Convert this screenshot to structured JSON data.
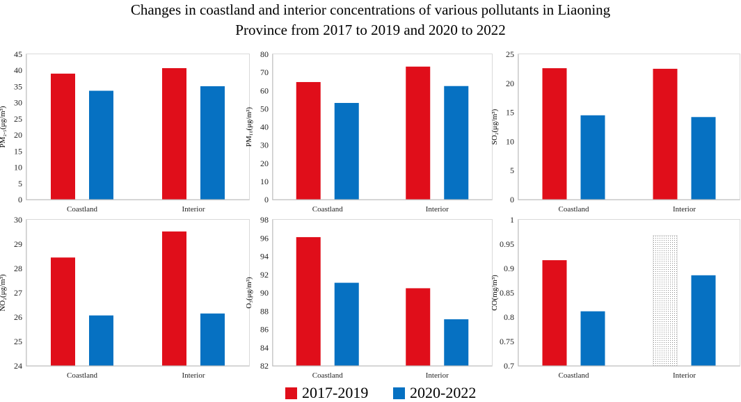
{
  "title_lines": [
    "Changes in coastland and interior concentrations of various pollutants in Liaoning",
    "Province from 2017 to 2019 and 2020 to 2022"
  ],
  "legend": [
    {
      "label": "2017-2019",
      "color": "#e00e1a"
    },
    {
      "label": "2020-2022",
      "color": "#0671c2"
    }
  ],
  "chart_data": [
    {
      "type": "bar",
      "ylabel": "PM₂.₅(μg/m³)",
      "categories": [
        "Coastland",
        "Interior"
      ],
      "series": [
        {
          "name": "2017-2019",
          "values": [
            39.0,
            40.7
          ]
        },
        {
          "name": "2020-2022",
          "values": [
            33.7,
            35.1
          ]
        }
      ],
      "ylim": [
        0,
        45
      ],
      "yticks": [
        0,
        5,
        10,
        15,
        20,
        25,
        30,
        35,
        40,
        45
      ],
      "ytick_labels": [
        "0",
        "5",
        "10",
        "15",
        "20",
        "25",
        "30",
        "35",
        "40",
        "45"
      ]
    },
    {
      "type": "bar",
      "ylabel": "PM₁₀(μg/m³)",
      "categories": [
        "Coastland",
        "Interior"
      ],
      "series": [
        {
          "name": "2017-2019",
          "values": [
            64.7,
            73.2
          ]
        },
        {
          "name": "2020-2022",
          "values": [
            53.2,
            62.5
          ]
        }
      ],
      "ylim": [
        0,
        80
      ],
      "yticks": [
        0,
        10,
        20,
        30,
        40,
        50,
        60,
        70,
        80
      ],
      "ytick_labels": [
        "0",
        "10",
        "20",
        "30",
        "40",
        "50",
        "60",
        "70",
        "80"
      ]
    },
    {
      "type": "bar",
      "ylabel": "SO₂(μg/m³)",
      "categories": [
        "Coastland",
        "Interior"
      ],
      "series": [
        {
          "name": "2017-2019",
          "values": [
            22.6,
            22.5
          ]
        },
        {
          "name": "2020-2022",
          "values": [
            14.5,
            14.2
          ]
        }
      ],
      "ylim": [
        0,
        25
      ],
      "yticks": [
        0,
        5,
        10,
        15,
        20,
        25
      ],
      "ytick_labels": [
        "0",
        "5",
        "10",
        "15",
        "20",
        "25"
      ]
    },
    {
      "type": "bar",
      "ylabel": "NO₂(μg/m³)",
      "categories": [
        "Coastland",
        "Interior"
      ],
      "series": [
        {
          "name": "2017-2019",
          "values": [
            28.45,
            29.52
          ]
        },
        {
          "name": "2020-2022",
          "values": [
            26.07,
            26.15
          ]
        }
      ],
      "ylim": [
        24,
        30
      ],
      "yticks": [
        24,
        25,
        26,
        27,
        28,
        29,
        30
      ],
      "ytick_labels": [
        "24",
        "25",
        "26",
        "27",
        "28",
        "29",
        "30"
      ]
    },
    {
      "type": "bar",
      "ylabel": "O₃(μg/m³)",
      "categories": [
        "Coastland",
        "Interior"
      ],
      "series": [
        {
          "name": "2017-2019",
          "values": [
            96.1,
            90.5
          ]
        },
        {
          "name": "2020-2022",
          "values": [
            91.1,
            87.1
          ]
        }
      ],
      "ylim": [
        82,
        98
      ],
      "yticks": [
        82,
        84,
        86,
        88,
        90,
        92,
        94,
        96,
        98
      ],
      "ytick_labels": [
        "82",
        "84",
        "86",
        "88",
        "90",
        "92",
        "94",
        "96",
        "98"
      ]
    },
    {
      "type": "bar",
      "ylabel": "CO(mg/m³)",
      "categories": [
        "Coastland",
        "Interior"
      ],
      "series": [
        {
          "name": "2017-2019",
          "values": [
            0.917,
            0.968
          ],
          "patterned": [
            false,
            true
          ]
        },
        {
          "name": "2020-2022",
          "values": [
            0.812,
            0.886
          ]
        }
      ],
      "ylim": [
        0.7,
        1.0
      ],
      "yticks": [
        0.7,
        0.75,
        0.8,
        0.85,
        0.9,
        0.95,
        1.0
      ],
      "ytick_labels": [
        "0.7",
        "0.75",
        "0.8",
        "0.85",
        "0.9",
        "0.95",
        "1"
      ]
    }
  ]
}
